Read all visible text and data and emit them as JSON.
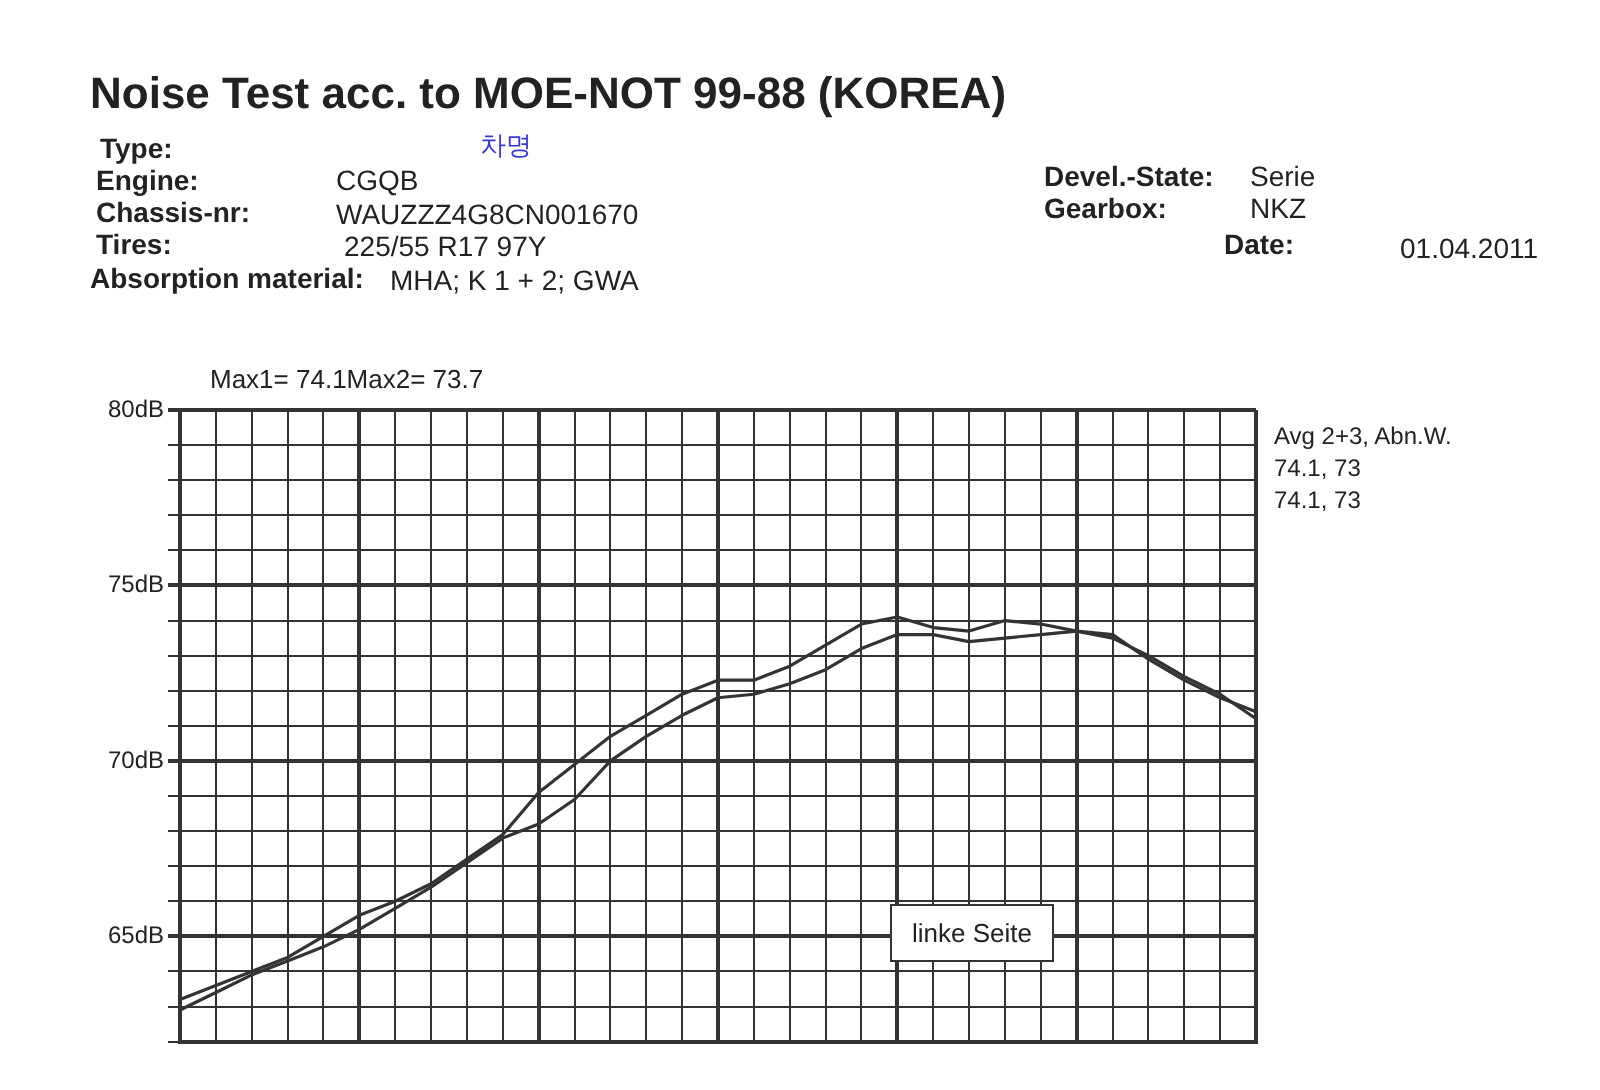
{
  "chart_data": {
    "type": "line",
    "title": "Noise Test acc. to MOE-NOT 99-88 (KOREA)",
    "annotations": [
      "Type:",
      "차명",
      "Engine:",
      "CGQB",
      "Chassis-nr:",
      "WAUZZZ4G8CN001670",
      "Tires:",
      "225/55 R17 97Y",
      "Absorption material:",
      "MHA; K 1 + 2; GWA",
      "Devel.-State:",
      "Serie",
      "Gearbox:",
      "NKZ",
      "Date:",
      "01.04.2011",
      "Max1= 74.1Max2= 73.7",
      "Avg 2+3, Abn.W.",
      "74.1, 73",
      "74.1, 73",
      "linke Seite"
    ],
    "categories": [
      null,
      null,
      null,
      null,
      null,
      null,
      null,
      null,
      null,
      null,
      null,
      null,
      null,
      null,
      null,
      null,
      null,
      null,
      null,
      null,
      null,
      null,
      null,
      null,
      null,
      null,
      null,
      null,
      null,
      null,
      null
    ],
    "series": [
      {
        "color": "#333333",
        "values": [
          63.2,
          63.6,
          64.0,
          64.4,
          65.0,
          65.6,
          66.0,
          66.5,
          67.2,
          67.9,
          69.1,
          69.9,
          70.7,
          71.3,
          71.9,
          72.3,
          72.3,
          72.7,
          73.3,
          73.9,
          74.1,
          73.8,
          73.7,
          74.0,
          73.9,
          73.7,
          73.5,
          73.0,
          72.4,
          71.9,
          71.2
        ]
      },
      {
        "color": "#333333",
        "values": [
          62.9,
          63.4,
          63.9,
          64.3,
          64.7,
          65.2,
          65.8,
          66.4,
          67.1,
          67.8,
          68.2,
          68.9,
          70.0,
          70.7,
          71.3,
          71.8,
          71.9,
          72.2,
          72.6,
          73.2,
          73.6,
          73.6,
          73.4,
          73.5,
          73.6,
          73.7,
          73.6,
          72.9,
          72.3,
          71.8,
          71.4
        ]
      }
    ],
    "ylim": [
      62,
      80
    ],
    "yticks": [
      {
        "value": 62,
        "label": null
      },
      {
        "value": 63,
        "label": null
      },
      {
        "value": 64,
        "label": null
      },
      {
        "value": 65,
        "label": "65dB"
      },
      {
        "value": 66,
        "label": null
      },
      {
        "value": 67,
        "label": null
      },
      {
        "value": 68,
        "label": null
      },
      {
        "value": 69,
        "label": null
      },
      {
        "value": 70,
        "label": "70dB"
      },
      {
        "value": 71,
        "label": null
      },
      {
        "value": 72,
        "label": null
      },
      {
        "value": 73,
        "label": null
      },
      {
        "value": 74,
        "label": null
      },
      {
        "value": 75,
        "label": "75dB"
      },
      {
        "value": 76,
        "label": null
      },
      {
        "value": 77,
        "label": null
      },
      {
        "value": 78,
        "label": null
      },
      {
        "value": 79,
        "label": null
      },
      {
        "value": 80,
        "label": "80dB"
      }
    ],
    "tick_labels": "y",
    "grid": true,
    "legend": false,
    "line_style": "solid"
  }
}
